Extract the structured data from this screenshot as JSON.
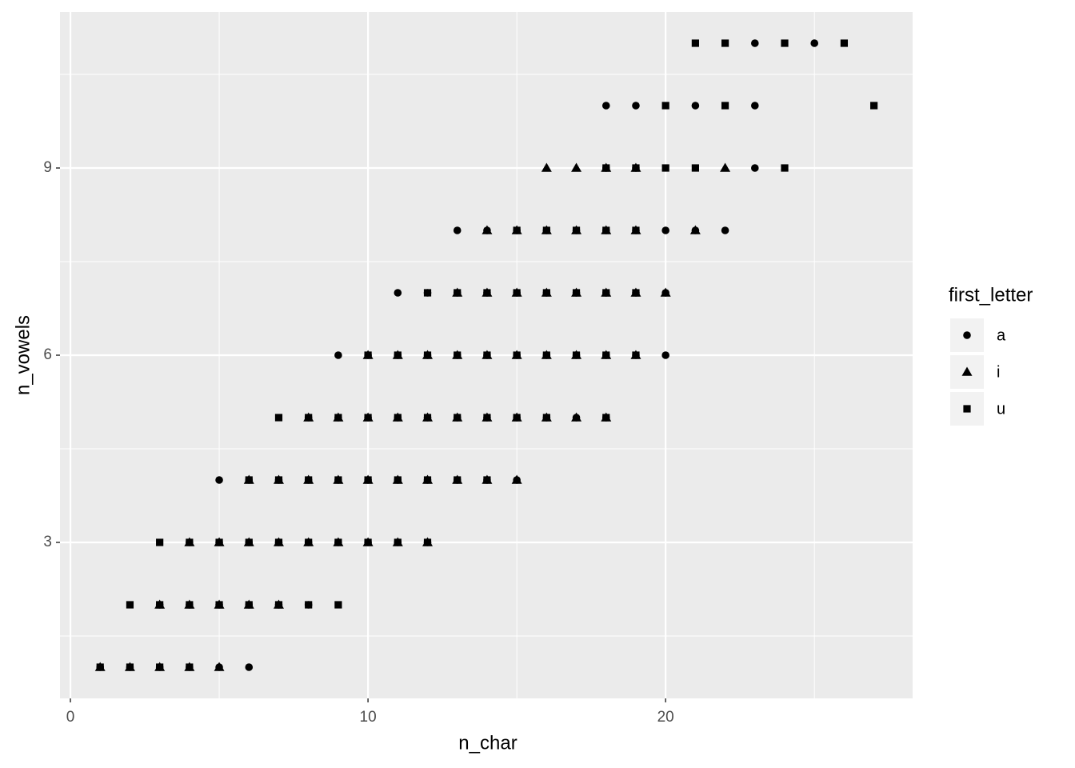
{
  "chart_data": {
    "type": "scatter",
    "x_label": "n_char",
    "y_label": "n_vowels",
    "xlim": [
      -0.35,
      28.3
    ],
    "ylim": [
      0.5,
      11.5
    ],
    "xticks": [
      0,
      10,
      20
    ],
    "yticks": [
      3,
      6,
      9
    ],
    "grid": true,
    "legend_title": "first_letter",
    "legend_position": "right",
    "series": [
      {
        "name": "a",
        "shape": "circle",
        "color": "#000000",
        "x": [
          1,
          2,
          3,
          4,
          5,
          6,
          3,
          4,
          5,
          6,
          7,
          8,
          4,
          5,
          6,
          7,
          8,
          9,
          10,
          11,
          12,
          5,
          6,
          7,
          8,
          9,
          10,
          11,
          12,
          13,
          14,
          15,
          8,
          9,
          10,
          11,
          12,
          13,
          14,
          15,
          16,
          17,
          18,
          9,
          10,
          11,
          12,
          13,
          14,
          15,
          16,
          17,
          18,
          19,
          20,
          11,
          12,
          13,
          14,
          15,
          16,
          17,
          18,
          19,
          20,
          13,
          14,
          15,
          16,
          17,
          18,
          19,
          20,
          21,
          22,
          18,
          19,
          23,
          18,
          19,
          21,
          23,
          23,
          25
        ],
        "y": [
          1,
          1,
          1,
          1,
          1,
          1,
          2,
          2,
          2,
          2,
          2,
          2,
          3,
          3,
          3,
          3,
          3,
          3,
          3,
          3,
          3,
          4,
          4,
          4,
          4,
          4,
          4,
          4,
          4,
          4,
          4,
          4,
          5,
          5,
          5,
          5,
          5,
          5,
          5,
          5,
          5,
          5,
          5,
          6,
          6,
          6,
          6,
          6,
          6,
          6,
          6,
          6,
          6,
          6,
          6,
          7,
          7,
          7,
          7,
          7,
          7,
          7,
          7,
          7,
          7,
          8,
          8,
          8,
          8,
          8,
          8,
          8,
          8,
          8,
          8,
          9,
          9,
          9,
          10,
          10,
          10,
          10,
          11,
          11
        ]
      },
      {
        "name": "i",
        "shape": "triangle",
        "color": "#000000",
        "x": [
          1,
          2,
          3,
          4,
          5,
          3,
          4,
          5,
          6,
          7,
          4,
          5,
          6,
          7,
          8,
          9,
          10,
          11,
          12,
          6,
          7,
          8,
          9,
          10,
          11,
          12,
          13,
          14,
          15,
          8,
          9,
          10,
          11,
          12,
          13,
          14,
          15,
          16,
          17,
          18,
          10,
          11,
          12,
          13,
          14,
          15,
          16,
          17,
          18,
          19,
          13,
          14,
          15,
          16,
          17,
          18,
          19,
          20,
          14,
          15,
          16,
          17,
          18,
          19,
          21,
          16,
          17,
          18,
          19,
          22
        ],
        "y": [
          1,
          1,
          1,
          1,
          1,
          2,
          2,
          2,
          2,
          2,
          3,
          3,
          3,
          3,
          3,
          3,
          3,
          3,
          3,
          4,
          4,
          4,
          4,
          4,
          4,
          4,
          4,
          4,
          4,
          5,
          5,
          5,
          5,
          5,
          5,
          5,
          5,
          5,
          5,
          5,
          6,
          6,
          6,
          6,
          6,
          6,
          6,
          6,
          6,
          6,
          7,
          7,
          7,
          7,
          7,
          7,
          7,
          7,
          8,
          8,
          8,
          8,
          8,
          8,
          8,
          9,
          9,
          9,
          9,
          9
        ]
      },
      {
        "name": "u",
        "shape": "square",
        "color": "#000000",
        "x": [
          1,
          2,
          3,
          4,
          2,
          3,
          4,
          5,
          6,
          7,
          8,
          9,
          3,
          4,
          5,
          6,
          7,
          8,
          9,
          10,
          11,
          12,
          6,
          7,
          8,
          9,
          10,
          11,
          12,
          13,
          14,
          7,
          8,
          9,
          10,
          11,
          12,
          13,
          14,
          15,
          16,
          18,
          10,
          11,
          12,
          13,
          14,
          15,
          16,
          17,
          18,
          19,
          12,
          13,
          14,
          15,
          16,
          17,
          18,
          19,
          15,
          16,
          17,
          18,
          19,
          18,
          19,
          20,
          21,
          24,
          20,
          22,
          27,
          21,
          22,
          24,
          26
        ],
        "y": [
          1,
          1,
          1,
          1,
          2,
          2,
          2,
          2,
          2,
          2,
          2,
          2,
          3,
          3,
          3,
          3,
          3,
          3,
          3,
          3,
          3,
          3,
          4,
          4,
          4,
          4,
          4,
          4,
          4,
          4,
          4,
          5,
          5,
          5,
          5,
          5,
          5,
          5,
          5,
          5,
          5,
          5,
          6,
          6,
          6,
          6,
          6,
          6,
          6,
          6,
          6,
          6,
          7,
          7,
          7,
          7,
          7,
          7,
          7,
          7,
          8,
          8,
          8,
          8,
          8,
          9,
          9,
          9,
          9,
          9,
          10,
          10,
          10,
          11,
          11,
          11,
          11
        ]
      }
    ]
  }
}
